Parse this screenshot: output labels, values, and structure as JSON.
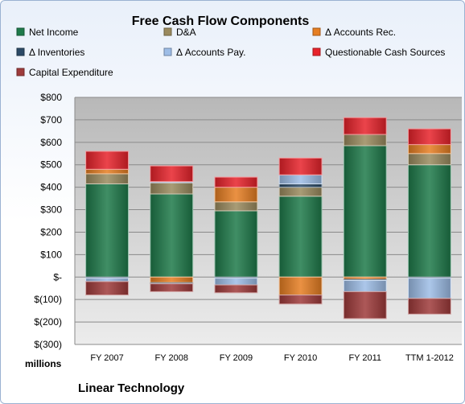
{
  "chart_data": {
    "type": "bar",
    "stacked": true,
    "title": "Free Cash Flow Components",
    "unit_label": "millions",
    "footer_label": "Linear Technology",
    "categories": [
      "FY 2007",
      "FY 2008",
      "FY 2009",
      "FY 2010",
      "FY 2011",
      "TTM 1-2012"
    ],
    "ylim": [
      -300,
      800
    ],
    "y_ticks": [
      800,
      700,
      600,
      500,
      400,
      300,
      200,
      100,
      0,
      -100,
      -200,
      -300
    ],
    "y_tick_labels": [
      "$800",
      "$700",
      "$600",
      "$500",
      "$400",
      "$300",
      "$200",
      "$100",
      "$-",
      "$(100)",
      "$(200)",
      "$(300)"
    ],
    "grid": true,
    "legend_position": "top",
    "series": [
      {
        "name": "Net Income",
        "color": "#1e7a4a",
        "values": [
          415,
          370,
          295,
          360,
          585,
          500
        ]
      },
      {
        "name": "D&A",
        "color": "#9a8a5e",
        "values": [
          45,
          50,
          40,
          40,
          50,
          50
        ]
      },
      {
        "name": "Δ Accounts Rec.",
        "color": "#e67e22",
        "values": [
          20,
          -25,
          65,
          -80,
          -10,
          40
        ]
      },
      {
        "name": "Δ Inventories",
        "color": "#2c4a66",
        "values": [
          -5,
          -5,
          -5,
          15,
          -5,
          -5
        ]
      },
      {
        "name": "Δ Accounts Pay.",
        "color": "#9dbde6",
        "values": [
          -15,
          5,
          -30,
          40,
          -50,
          -90
        ]
      },
      {
        "name": "Questionable Cash Sources",
        "color": "#e8232b",
        "values": [
          80,
          70,
          45,
          75,
          75,
          70
        ]
      },
      {
        "name": "Capital Expenditure",
        "color": "#9e3b3b",
        "values": [
          -60,
          -35,
          -35,
          -40,
          -120,
          -70
        ]
      }
    ]
  }
}
